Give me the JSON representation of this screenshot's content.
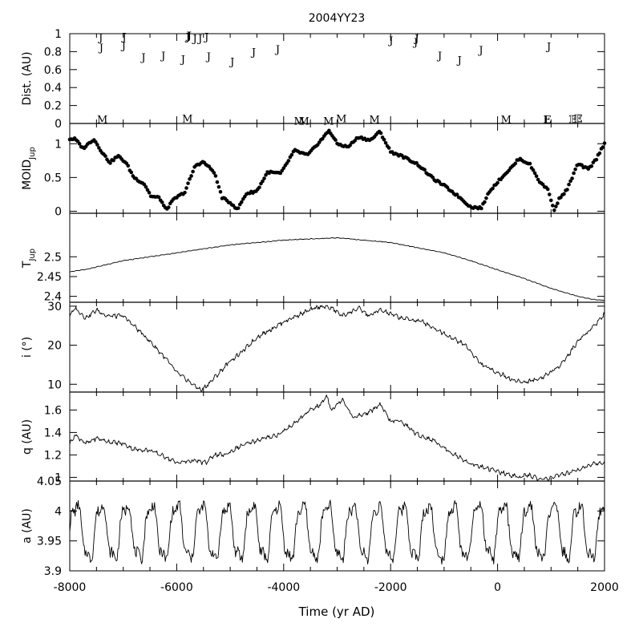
{
  "chart_data": {
    "type": "line",
    "title": "2004YY23",
    "xlabel": "Time (yr AD)",
    "xlim": [
      -8000,
      2000
    ],
    "x_ticks": [
      "-8000",
      "-6000",
      "-4000",
      "-2000",
      "0",
      "2000"
    ],
    "panels": [
      {
        "id": "dist",
        "ylabel": "Dist. (AU)",
        "ylim": [
          0,
          1
        ],
        "y_ticks": [
          "0",
          "0.2",
          "0.4",
          "0.6",
          "0.8",
          "1"
        ],
        "y_tick_values": [
          0,
          0.2,
          0.4,
          0.6,
          0.8,
          1
        ],
        "encounters": [
          {
            "x": -7420,
            "y": 0.96,
            "label": "J"
          },
          {
            "x": -7410,
            "y": 0.85,
            "label": "J"
          },
          {
            "x": -6980,
            "y": 0.97,
            "label": "J"
          },
          {
            "x": -6990,
            "y": 0.87,
            "label": "J"
          },
          {
            "x": -6620,
            "y": 0.74,
            "label": "J"
          },
          {
            "x": -6250,
            "y": 0.76,
            "label": "J"
          },
          {
            "x": -5880,
            "y": 0.72,
            "label": "J"
          },
          {
            "x": -5790,
            "y": 0.97,
            "label": "J"
          },
          {
            "x": -5770,
            "y": 0.98,
            "label": "J",
            "style": "bold"
          },
          {
            "x": -5660,
            "y": 0.95,
            "label": "J"
          },
          {
            "x": -5560,
            "y": 0.95,
            "label": "J"
          },
          {
            "x": -5440,
            "y": 0.97,
            "label": "J"
          },
          {
            "x": -5400,
            "y": 0.75,
            "label": "J"
          },
          {
            "x": -4960,
            "y": 0.69,
            "label": "J"
          },
          {
            "x": -4560,
            "y": 0.8,
            "label": "J"
          },
          {
            "x": -4110,
            "y": 0.83,
            "label": "J"
          },
          {
            "x": -1990,
            "y": 0.93,
            "label": "J"
          },
          {
            "x": -1530,
            "y": 0.91,
            "label": "J"
          },
          {
            "x": -1510,
            "y": 0.95,
            "label": "J"
          },
          {
            "x": -1080,
            "y": 0.76,
            "label": "J"
          },
          {
            "x": -710,
            "y": 0.71,
            "label": "J"
          },
          {
            "x": -310,
            "y": 0.82,
            "label": "J"
          },
          {
            "x": 960,
            "y": 0.86,
            "label": "J"
          },
          {
            "x": -7390,
            "y": 0.05,
            "label": "M"
          },
          {
            "x": -5800,
            "y": 0.06,
            "label": "M"
          },
          {
            "x": -3710,
            "y": 0.03,
            "label": "M"
          },
          {
            "x": -3620,
            "y": 0.03,
            "label": "M"
          },
          {
            "x": -3160,
            "y": 0.03,
            "label": "M"
          },
          {
            "x": -2920,
            "y": 0.06,
            "label": "M"
          },
          {
            "x": -2300,
            "y": 0.05,
            "label": "M"
          },
          {
            "x": 160,
            "y": 0.05,
            "label": "M"
          },
          {
            "x": 930,
            "y": 0.05,
            "label": "E",
            "style": "bold"
          },
          {
            "x": 1410,
            "y": 0.05,
            "label": "E",
            "style": "outline"
          },
          {
            "x": 1510,
            "y": 0.06,
            "label": "E",
            "style": "outline"
          }
        ]
      },
      {
        "id": "moid",
        "ylabel": "MOID",
        "ylabel_sub": "Jup",
        "ylim": [
          -0.03,
          1.3
        ],
        "y_ticks": [
          "0",
          "0.5",
          "1"
        ],
        "y_tick_values": [
          0,
          0.5,
          1
        ],
        "series_style": "dots",
        "knots": [
          [
            -8000,
            1.07
          ],
          [
            -7900,
            1.07
          ],
          [
            -7750,
            0.93
          ],
          [
            -7550,
            1.07
          ],
          [
            -7400,
            0.88
          ],
          [
            -7250,
            0.72
          ],
          [
            -7100,
            0.82
          ],
          [
            -6950,
            0.72
          ],
          [
            -6800,
            0.5
          ],
          [
            -6600,
            0.4
          ],
          [
            -6480,
            0.22
          ],
          [
            -6320,
            0.2
          ],
          [
            -6200,
            0.02
          ],
          [
            -6050,
            0.18
          ],
          [
            -5850,
            0.28
          ],
          [
            -5650,
            0.68
          ],
          [
            -5500,
            0.73
          ],
          [
            -5300,
            0.58
          ],
          [
            -5150,
            0.2
          ],
          [
            -4950,
            0.1
          ],
          [
            -4870,
            0.02
          ],
          [
            -4700,
            0.26
          ],
          [
            -4500,
            0.3
          ],
          [
            -4300,
            0.58
          ],
          [
            -4050,
            0.56
          ],
          [
            -3800,
            0.9
          ],
          [
            -3550,
            0.83
          ],
          [
            -3250,
            1.1
          ],
          [
            -3150,
            1.2
          ],
          [
            -3000,
            1.0
          ],
          [
            -2800,
            0.95
          ],
          [
            -2600,
            1.1
          ],
          [
            -2380,
            1.05
          ],
          [
            -2200,
            1.18
          ],
          [
            -2000,
            0.88
          ],
          [
            -1800,
            0.82
          ],
          [
            -1500,
            0.7
          ],
          [
            -1200,
            0.48
          ],
          [
            -1000,
            0.38
          ],
          [
            -700,
            0.2
          ],
          [
            -500,
            0.06
          ],
          [
            -300,
            0.05
          ],
          [
            -150,
            0.3
          ],
          [
            100,
            0.52
          ],
          [
            300,
            0.68
          ],
          [
            400,
            0.78
          ],
          [
            600,
            0.7
          ],
          [
            800,
            0.42
          ],
          [
            950,
            0.32
          ],
          [
            1050,
            0.01
          ],
          [
            1150,
            0.18
          ],
          [
            1300,
            0.32
          ],
          [
            1500,
            0.7
          ],
          [
            1700,
            0.62
          ],
          [
            1850,
            0.78
          ],
          [
            2000,
            1.01
          ]
        ]
      },
      {
        "id": "tjup",
        "ylabel": "T",
        "ylabel_sub": "Jup",
        "ylim": [
          2.383,
          2.61
        ],
        "y_ticks": [
          "2.4",
          "2.45",
          "2.5"
        ],
        "y_tick_values": [
          2.4,
          2.45,
          2.5
        ],
        "series_style": "line",
        "knots": [
          [
            -8000,
            2.462
          ],
          [
            -7700,
            2.468
          ],
          [
            -7000,
            2.49
          ],
          [
            -6000,
            2.51
          ],
          [
            -5000,
            2.53
          ],
          [
            -4000,
            2.542
          ],
          [
            -3000,
            2.548
          ],
          [
            -2000,
            2.536
          ],
          [
            -1000,
            2.51
          ],
          [
            -500,
            2.49
          ],
          [
            0,
            2.467
          ],
          [
            500,
            2.445
          ],
          [
            1000,
            2.42
          ],
          [
            1500,
            2.4
          ],
          [
            1800,
            2.392
          ],
          [
            2000,
            2.39
          ]
        ]
      },
      {
        "id": "i",
        "ylabel": "i (°)",
        "ylim": [
          8,
          31
        ],
        "y_ticks": [
          "10",
          "20",
          "30"
        ],
        "y_tick_values": [
          10,
          20,
          30
        ],
        "series_style": "line",
        "knots": [
          [
            -8000,
            27.5
          ],
          [
            -7900,
            29.5
          ],
          [
            -7700,
            27
          ],
          [
            -7500,
            29
          ],
          [
            -7300,
            27.5
          ],
          [
            -7000,
            27.5
          ],
          [
            -6800,
            25
          ],
          [
            -6500,
            21
          ],
          [
            -6200,
            16.5
          ],
          [
            -6000,
            13
          ],
          [
            -5700,
            10
          ],
          [
            -5550,
            8.5
          ],
          [
            -5450,
            9.5
          ],
          [
            -5200,
            13
          ],
          [
            -5000,
            16
          ],
          [
            -4800,
            18
          ],
          [
            -4500,
            22
          ],
          [
            -4000,
            26
          ],
          [
            -3600,
            28.5
          ],
          [
            -3300,
            30
          ],
          [
            -3100,
            29.5
          ],
          [
            -2900,
            27.5
          ],
          [
            -2600,
            29.5
          ],
          [
            -2400,
            27.5
          ],
          [
            -2200,
            29
          ],
          [
            -2000,
            28
          ],
          [
            -1800,
            27
          ],
          [
            -1400,
            26
          ],
          [
            -1000,
            23
          ],
          [
            -600,
            20
          ],
          [
            -300,
            15
          ],
          [
            0,
            13
          ],
          [
            300,
            11
          ],
          [
            500,
            10.5
          ],
          [
            800,
            11.5
          ],
          [
            1100,
            14
          ],
          [
            1300,
            17
          ],
          [
            1500,
            21
          ],
          [
            1800,
            25
          ],
          [
            2000,
            28
          ]
        ]
      },
      {
        "id": "q",
        "ylabel": "q (AU)",
        "ylim": [
          0.96,
          1.76
        ],
        "y_ticks": [
          "1",
          "1.2",
          "1.4",
          "1.6"
        ],
        "y_tick_values": [
          1.0,
          1.2,
          1.4,
          1.6
        ],
        "series_style": "line",
        "knots": [
          [
            -8000,
            1.3
          ],
          [
            -7900,
            1.38
          ],
          [
            -7700,
            1.3
          ],
          [
            -7500,
            1.35
          ],
          [
            -7300,
            1.32
          ],
          [
            -7000,
            1.3
          ],
          [
            -6800,
            1.25
          ],
          [
            -6500,
            1.24
          ],
          [
            -6200,
            1.18
          ],
          [
            -6000,
            1.13
          ],
          [
            -5700,
            1.15
          ],
          [
            -5450,
            1.13
          ],
          [
            -5300,
            1.2
          ],
          [
            -5100,
            1.2
          ],
          [
            -4800,
            1.28
          ],
          [
            -4500,
            1.33
          ],
          [
            -4100,
            1.38
          ],
          [
            -3800,
            1.48
          ],
          [
            -3500,
            1.6
          ],
          [
            -3300,
            1.65
          ],
          [
            -3200,
            1.73
          ],
          [
            -3100,
            1.6
          ],
          [
            -2900,
            1.7
          ],
          [
            -2700,
            1.53
          ],
          [
            -2400,
            1.58
          ],
          [
            -2200,
            1.65
          ],
          [
            -2000,
            1.5
          ],
          [
            -1800,
            1.5
          ],
          [
            -1500,
            1.38
          ],
          [
            -1200,
            1.33
          ],
          [
            -900,
            1.23
          ],
          [
            -500,
            1.12
          ],
          [
            -200,
            1.08
          ],
          [
            100,
            1.04
          ],
          [
            400,
            1.0
          ],
          [
            600,
            1.02
          ],
          [
            800,
            0.98
          ],
          [
            1000,
            1.0
          ],
          [
            1200,
            1.02
          ],
          [
            1500,
            1.07
          ],
          [
            1800,
            1.12
          ],
          [
            2000,
            1.13
          ]
        ]
      },
      {
        "id": "a",
        "ylabel": "a (AU)",
        "ylim": [
          3.9,
          4.05
        ],
        "y_ticks": [
          "3.9",
          "3.95",
          "4",
          "4.05"
        ],
        "y_tick_values": [
          3.9,
          3.95,
          4.0,
          4.05
        ],
        "series_style": "line",
        "oscillation": {
          "center": 3.965,
          "amplitude": 0.045,
          "period": 470
        }
      }
    ]
  }
}
